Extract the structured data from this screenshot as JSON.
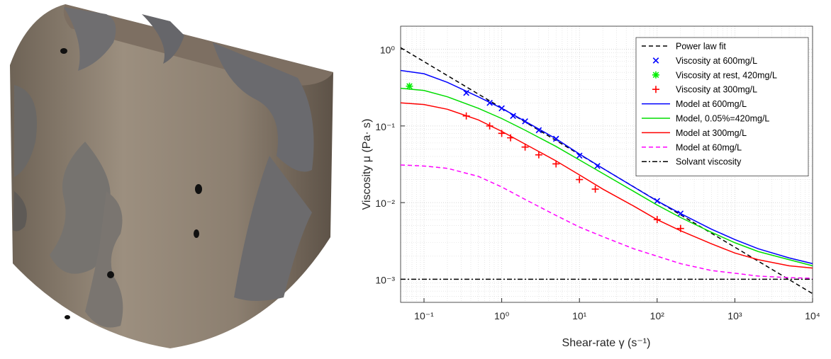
{
  "chart_data": {
    "type": "line",
    "xlabel": "Shear-rate γ (s⁻¹)",
    "ylabel": "Viscosity μ (Pa· s)",
    "xscale": "log",
    "yscale": "log",
    "grid": true,
    "legend": "upper right",
    "xlim": [
      0.05,
      10000
    ],
    "ylim": [
      0.0005,
      2
    ],
    "xticks": [
      {
        "value": 0.1,
        "label": "10⁻¹"
      },
      {
        "value": 1,
        "label": "10⁰"
      },
      {
        "value": 10,
        "label": "10¹"
      },
      {
        "value": 100,
        "label": "10²"
      },
      {
        "value": 1000,
        "label": "10³"
      },
      {
        "value": 10000,
        "label": "10⁴"
      }
    ],
    "yticks": [
      {
        "value": 0.001,
        "label": "10⁻³"
      },
      {
        "value": 0.01,
        "label": "10⁻²"
      },
      {
        "value": 0.1,
        "label": "10⁻¹"
      },
      {
        "value": 1,
        "label": "10⁰"
      }
    ],
    "series": [
      {
        "name": "Power law fit",
        "color": "#000000",
        "style": "dashed",
        "x": [
          0.05,
          10000
        ],
        "values": [
          1.05,
          0.00065
        ]
      },
      {
        "name": "Viscosity at 600mg/L",
        "color": "#0000ff",
        "marker": "x",
        "x": [
          0.35,
          0.7,
          1,
          1.4,
          2,
          3,
          5,
          10,
          17,
          100,
          200
        ],
        "values": [
          0.27,
          0.2,
          0.17,
          0.135,
          0.115,
          0.088,
          0.068,
          0.041,
          0.03,
          0.0105,
          0.0072
        ]
      },
      {
        "name": "Viscosity at rest, 420mg/L",
        "color": "#00ee00",
        "marker": "*",
        "x": [
          0.065
        ],
        "values": [
          0.33
        ]
      },
      {
        "name": "Viscosity at 300mg/L",
        "color": "#ff0000",
        "marker": "+",
        "x": [
          0.35,
          0.7,
          1,
          1.3,
          2,
          3,
          5,
          10,
          16,
          100,
          200
        ],
        "values": [
          0.135,
          0.1,
          0.08,
          0.07,
          0.053,
          0.042,
          0.032,
          0.02,
          0.015,
          0.006,
          0.0046
        ]
      },
      {
        "name": "Model at 600mg/L",
        "color": "#0000ff",
        "style": "solid",
        "x": [
          0.05,
          0.1,
          0.2,
          0.5,
          1,
          2,
          5,
          10,
          20,
          50,
          100,
          200,
          500,
          1000,
          2000,
          5000,
          10000
        ],
        "values": [
          0.53,
          0.48,
          0.37,
          0.24,
          0.17,
          0.115,
          0.068,
          0.043,
          0.028,
          0.016,
          0.0105,
          0.0072,
          0.0045,
          0.0033,
          0.0025,
          0.0019,
          0.0016
        ]
      },
      {
        "name": "Model, 0.05%=420mg/L",
        "color": "#00dd00",
        "style": "solid",
        "x": [
          0.05,
          0.1,
          0.2,
          0.5,
          1,
          2,
          5,
          10,
          20,
          50,
          100,
          200,
          500,
          1000,
          2000,
          5000,
          10000
        ],
        "values": [
          0.31,
          0.29,
          0.24,
          0.17,
          0.125,
          0.088,
          0.054,
          0.036,
          0.024,
          0.014,
          0.0093,
          0.0064,
          0.0041,
          0.003,
          0.0023,
          0.0018,
          0.0015
        ]
      },
      {
        "name": "Model at 300mg/L",
        "color": "#ff0000",
        "style": "solid",
        "x": [
          0.05,
          0.1,
          0.2,
          0.5,
          1,
          2,
          5,
          10,
          20,
          50,
          100,
          200,
          500,
          1000,
          2000,
          5000,
          10000
        ],
        "values": [
          0.2,
          0.19,
          0.165,
          0.12,
          0.085,
          0.058,
          0.035,
          0.023,
          0.015,
          0.009,
          0.006,
          0.0043,
          0.0029,
          0.0022,
          0.0018,
          0.0015,
          0.0014
        ]
      },
      {
        "name": "Model at 60mg/L",
        "color": "#ff00ff",
        "style": "dashed",
        "x": [
          0.05,
          0.1,
          0.2,
          0.5,
          1,
          2,
          5,
          10,
          20,
          50,
          100,
          200,
          500,
          1000,
          2000,
          5000,
          10000
        ],
        "values": [
          0.031,
          0.03,
          0.028,
          0.022,
          0.016,
          0.011,
          0.0068,
          0.0048,
          0.0036,
          0.0025,
          0.002,
          0.0016,
          0.0013,
          0.0012,
          0.0011,
          0.00105,
          0.00103
        ]
      },
      {
        "name": "Solvant viscosity",
        "color": "#000000",
        "style": "dashdot",
        "x": [
          0.05,
          10000
        ],
        "values": [
          0.001,
          0.001
        ]
      }
    ]
  }
}
